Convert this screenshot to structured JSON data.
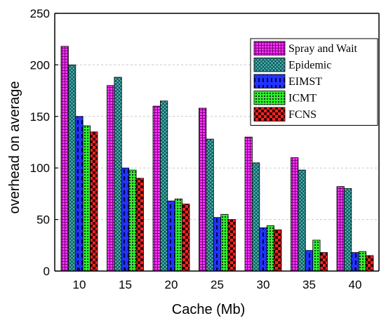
{
  "chart_data": {
    "type": "bar",
    "title": "",
    "xlabel": "Cache (Mb)",
    "ylabel": "overhead on average",
    "ylim": [
      0,
      250
    ],
    "yticks": [
      0,
      50,
      100,
      150,
      200,
      250
    ],
    "grid": "horizontal-dashed",
    "legend_position": "top-right",
    "categories": [
      "10",
      "15",
      "20",
      "25",
      "30",
      "35",
      "40"
    ],
    "series": [
      {
        "name": "Spray and Wait",
        "color": "#ff33ff",
        "pattern": "grid",
        "values": [
          218,
          180,
          160,
          158,
          130,
          110,
          82
        ]
      },
      {
        "name": "Epidemic",
        "color": "#33aaaa",
        "pattern": "crosshatch",
        "values": [
          200,
          188,
          165,
          128,
          105,
          98,
          80
        ]
      },
      {
        "name": "EIMST",
        "color": "#2233ff",
        "pattern": "dashes",
        "values": [
          150,
          100,
          68,
          52,
          42,
          20,
          18
        ]
      },
      {
        "name": "ICMT",
        "color": "#33ee33",
        "pattern": "dots",
        "values": [
          141,
          98,
          70,
          55,
          44,
          30,
          19
        ]
      },
      {
        "name": "FCNS",
        "color": "#ff2222",
        "pattern": "checker",
        "values": [
          135,
          90,
          65,
          50,
          40,
          18,
          15
        ]
      }
    ]
  }
}
